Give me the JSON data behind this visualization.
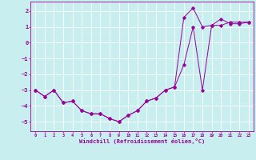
{
  "xlabel": "Windchill (Refroidissement éolien,°C)",
  "bg_color": "#c8eef0",
  "line_color": "#990099",
  "grid_color": "#ffffff",
  "xlim": [
    -0.5,
    23.5
  ],
  "ylim": [
    -5.6,
    2.6
  ],
  "yticks": [
    2,
    1,
    0,
    -1,
    -2,
    -3,
    -4,
    -5
  ],
  "xticks": [
    0,
    1,
    2,
    3,
    4,
    5,
    6,
    7,
    8,
    9,
    10,
    11,
    12,
    13,
    14,
    15,
    16,
    17,
    18,
    19,
    20,
    21,
    22,
    23
  ],
  "line1_x": [
    0,
    1,
    2,
    3,
    4,
    5,
    6,
    7,
    8,
    9,
    10,
    11,
    12,
    13,
    14,
    15,
    16,
    17,
    18,
    19,
    20,
    21,
    22,
    23
  ],
  "line1_y": [
    -3.0,
    -3.4,
    -3.0,
    -3.8,
    -3.7,
    -4.3,
    -4.5,
    -4.5,
    -4.8,
    -5.0,
    -4.6,
    -4.3,
    -3.7,
    -3.5,
    -3.0,
    -2.8,
    -1.4,
    1.0,
    -3.0,
    1.1,
    1.5,
    1.2,
    1.2,
    1.3
  ],
  "line2_x": [
    0,
    1,
    2,
    3,
    4,
    5,
    6,
    7,
    8,
    9,
    10,
    11,
    12,
    13,
    14,
    15,
    16,
    17,
    18,
    19,
    20,
    21,
    22,
    23
  ],
  "line2_y": [
    -3.0,
    -3.4,
    -3.0,
    -3.8,
    -3.7,
    -4.3,
    -4.5,
    -4.5,
    -4.8,
    -5.0,
    -4.6,
    -4.3,
    -3.7,
    -3.5,
    -3.0,
    -2.8,
    1.6,
    2.2,
    1.0,
    1.1,
    1.1,
    1.3,
    1.3,
    1.3
  ]
}
